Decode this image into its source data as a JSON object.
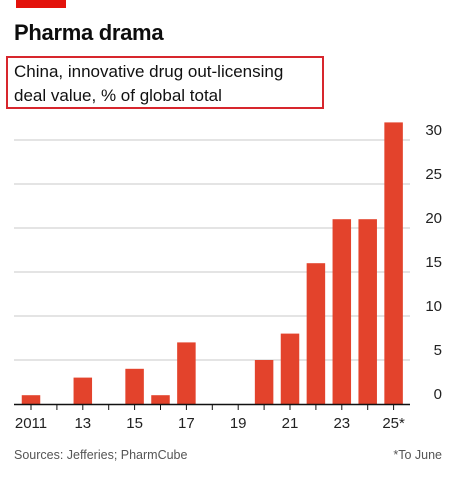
{
  "header": {
    "title": "Pharma drama",
    "subtitle_line1": "China, innovative drug out-licensing",
    "subtitle_line2": "deal value, % of global total"
  },
  "footer": {
    "source": "Sources: Jefferies; PharmCube",
    "note": "*To June"
  },
  "colors": {
    "bar": "#e3432c",
    "brand": "#e3120b",
    "highlight_box": "#d7262d",
    "grid": "#c9c9c9"
  },
  "chart_data": {
    "type": "bar",
    "x": [
      2011,
      2012,
      2013,
      2014,
      2015,
      2016,
      2017,
      2018,
      2019,
      2020,
      2021,
      2022,
      2023,
      2024,
      2025
    ],
    "values": [
      1,
      0,
      3,
      0,
      4,
      1,
      7,
      0,
      0,
      5,
      8,
      16,
      21,
      21,
      32
    ],
    "tick_labels": [
      "2011",
      "13",
      "15",
      "17",
      "19",
      "21",
      "23",
      "25*"
    ],
    "tick_years": [
      2011,
      2013,
      2015,
      2017,
      2019,
      2021,
      2023,
      2025
    ],
    "yticks": [
      0,
      5,
      10,
      15,
      20,
      25,
      30
    ],
    "ylim": [
      0,
      32
    ],
    "y_axis_side": "right",
    "grid": true,
    "xlabel": "",
    "ylabel": ""
  }
}
